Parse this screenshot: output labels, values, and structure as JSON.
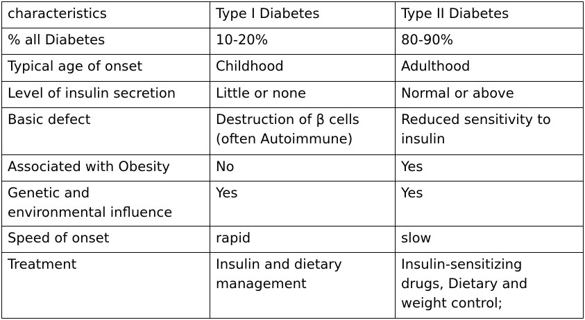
{
  "table": {
    "header": [
      "characteristics",
      "Type I Diabetes",
      "Type II Diabetes"
    ],
    "rows": [
      [
        "% all Diabetes",
        "10-20%",
        "80-90%"
      ],
      [
        "Typical age of onset",
        "Childhood",
        "Adulthood"
      ],
      [
        "Level of insulin secretion",
        "Little or none",
        "Normal or above"
      ],
      [
        "Basic defect",
        "Destruction of β cells\n(often Autoimmune)",
        "Reduced sensitivity to\ninsulin"
      ],
      [
        "Associated with Obesity",
        "No",
        "Yes"
      ],
      [
        "Genetic and\nenvironmental influence",
        "Yes",
        "Yes"
      ],
      [
        "Speed of onset",
        "rapid",
        "slow"
      ],
      [
        "Treatment",
        "Insulin and dietary\nmanagement",
        "Insulin-sensitizing\ndrugs, Dietary and\nweight control;"
      ]
    ]
  }
}
